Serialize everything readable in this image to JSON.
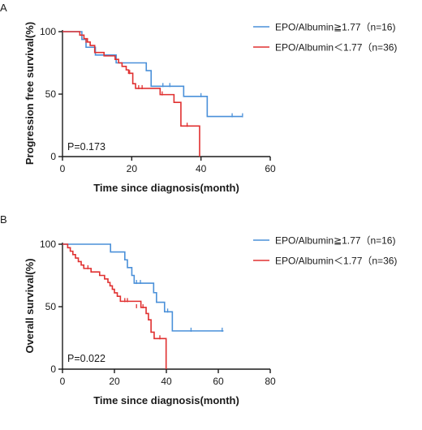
{
  "chart_data": [
    {
      "type": "line",
      "panel_label": "A",
      "title": "",
      "xlabel": "Time since diagnosis(month)",
      "ylabel": "Progression free survival(%)",
      "xlim": [
        0,
        60
      ],
      "ylim": [
        0,
        100
      ],
      "x_ticks": [
        "0",
        "20",
        "40",
        "60"
      ],
      "y_ticks": [
        "0",
        "50",
        "100"
      ],
      "annotation": "P=0.173",
      "grid": false,
      "legend_position": "top-right",
      "series": [
        {
          "name": "EPO/Albumin≧1.77（n=16)",
          "color": "#4a90d9",
          "x": [
            0,
            5.6,
            6.8,
            8.6,
            9.5,
            14,
            15.5,
            24.2,
            25.6,
            35,
            41.8,
            52
          ],
          "y": [
            100,
            93.8,
            87.5,
            87.5,
            81.3,
            81.3,
            75.0,
            68.8,
            56.3,
            48.2,
            32.1,
            32.1
          ],
          "censored": [
            [
              29,
              56.3
            ],
            [
              31,
              56.3
            ],
            [
              40,
              48.2
            ],
            [
              49,
              32.1
            ],
            [
              52,
              32.1
            ]
          ]
        },
        {
          "name": "EPO/Albumin＜1.77（n=36)",
          "color": "#e03030",
          "x": [
            0,
            5,
            6.2,
            7.2,
            8,
            9.3,
            12,
            15.2,
            16.2,
            17.2,
            18.4,
            19.1,
            20.3,
            21.1,
            25.6,
            28.2,
            32.2,
            34.2,
            39.6
          ],
          "y": [
            100,
            97.2,
            94.4,
            91.7,
            88.9,
            83.3,
            80.6,
            77.8,
            75.0,
            72.2,
            69.4,
            66.7,
            58.3,
            54.6,
            54.6,
            49.6,
            43.4,
            24.5,
            0
          ],
          "censored": [
            [
              6.8,
              91.7
            ],
            [
              19.4,
              66.7
            ],
            [
              22,
              54.6
            ],
            [
              23,
              54.6
            ],
            [
              28.8,
              49.6
            ],
            [
              36,
              24.5
            ]
          ]
        }
      ]
    },
    {
      "type": "line",
      "panel_label": "B",
      "title": "",
      "xlabel": "Time since diagnosis(month)",
      "ylabel": "Overall survival(%)",
      "xlim": [
        0,
        80
      ],
      "ylim": [
        0,
        100
      ],
      "x_ticks": [
        "0",
        "20",
        "40",
        "60",
        "80"
      ],
      "y_ticks": [
        "0",
        "50",
        "100"
      ],
      "annotation": "P=0.022",
      "grid": false,
      "legend_position": "top-right",
      "series": [
        {
          "name": "EPO/Albumin≧1.77（n=16)",
          "color": "#4a90d9",
          "x": [
            0,
            18.5,
            24,
            25,
            26.7,
            27.6,
            34,
            35.1,
            36.2,
            39.3,
            42.3,
            62
          ],
          "y": [
            100,
            93.8,
            87.5,
            81.3,
            75.0,
            68.8,
            68.8,
            61.2,
            53.5,
            45.9,
            30.6,
            30.6
          ],
          "censored": [
            [
              28.5,
              68.8
            ],
            [
              30,
              68.8
            ],
            [
              40.5,
              45.9
            ],
            [
              49.5,
              30.6
            ],
            [
              61.5,
              30.6
            ]
          ]
        },
        {
          "name": "EPO/Albumin＜1.77（n=36)",
          "color": "#e03030",
          "x": [
            0,
            2,
            3,
            4,
            5,
            6.1,
            7.2,
            8.2,
            9.3,
            11,
            14.3,
            16.2,
            17.5,
            18.3,
            19.2,
            20,
            21.1,
            22.3,
            27.4,
            30.2,
            32.2,
            33.1,
            34.1,
            35.3,
            39.9
          ],
          "y": [
            100,
            97.2,
            94.4,
            91.7,
            88.9,
            86.1,
            83.3,
            80.6,
            80.6,
            77.8,
            75.0,
            72.2,
            69.4,
            66.7,
            63.9,
            61.1,
            58.3,
            54.3,
            54.3,
            49.4,
            44.5,
            39.5,
            29.6,
            24.5,
            0
          ],
          "censored": [
            [
              9.8,
              80.6
            ],
            [
              24,
              54.3
            ],
            [
              25,
              54.3
            ],
            [
              28.5,
              49.4
            ],
            [
              31,
              49.4
            ],
            [
              37.5,
              24.5
            ]
          ]
        }
      ]
    }
  ]
}
